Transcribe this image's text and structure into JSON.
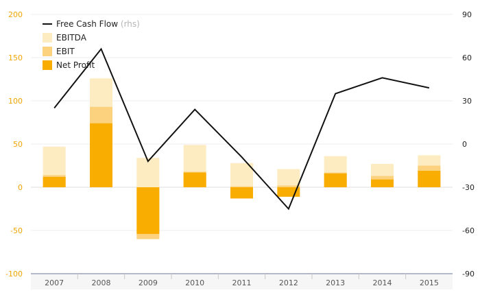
{
  "chart_data": {
    "type": "bar",
    "categories": [
      "2007",
      "2008",
      "2009",
      "2010",
      "2011",
      "2012",
      "2013",
      "2014",
      "2015"
    ],
    "series": [
      {
        "name": "EBITDA",
        "kind": "bar",
        "axis": "left",
        "color": "#fdebc2",
        "values": [
          47,
          126,
          34,
          49,
          28,
          21,
          36,
          27,
          37
        ]
      },
      {
        "name": "EBIT",
        "kind": "bar",
        "axis": "left",
        "color": "#fcd27f",
        "values": [
          14,
          93,
          -60,
          18,
          1,
          2,
          17,
          13,
          25
        ]
      },
      {
        "name": "Net Profit",
        "kind": "bar",
        "axis": "left",
        "color": "#f8ad00",
        "values": [
          12,
          74,
          -54,
          17,
          -13,
          -11,
          16,
          9,
          19
        ]
      },
      {
        "name": "Free Cash Flow",
        "name_suffix": "(rhs)",
        "kind": "line",
        "axis": "right",
        "color": "#111111",
        "values": [
          25,
          66,
          -12,
          24,
          -9,
          -45,
          35,
          46,
          39
        ]
      }
    ],
    "ylim": [
      -100,
      200
    ],
    "y_ticks": [
      "200",
      "150",
      "100",
      "50",
      "0",
      "-50",
      "-100"
    ],
    "y2lim": [
      -90,
      90
    ],
    "y2_ticks": [
      "90",
      "60",
      "30",
      "0",
      "-30",
      "-60",
      "-90"
    ],
    "left_axis_color": "#f0a500",
    "grid": true,
    "legend_position": "top-left"
  }
}
